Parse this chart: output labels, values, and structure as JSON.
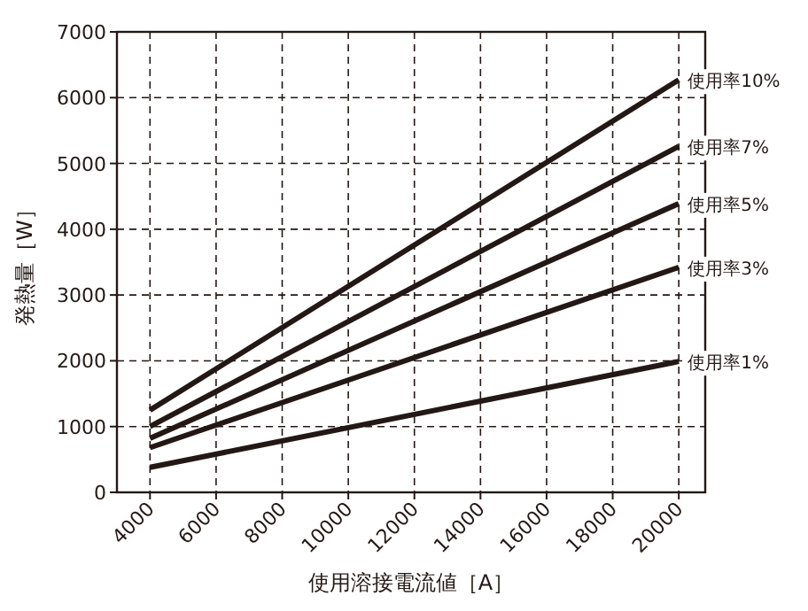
{
  "chart_data": {
    "type": "line",
    "xlabel": "使用溶接電流値［A］",
    "ylabel": "発熱量［W］",
    "x": [
      4000,
      20000
    ],
    "series": [
      {
        "name": "使用率10%",
        "color": "#231815",
        "values": [
          1250,
          6270
        ]
      },
      {
        "name": "使用率7%",
        "color": "#231815",
        "values": [
          1000,
          5260
        ]
      },
      {
        "name": "使用率5%",
        "color": "#231815",
        "values": [
          820,
          4390
        ]
      },
      {
        "name": "使用率3%",
        "color": "#231815",
        "values": [
          680,
          3420
        ]
      },
      {
        "name": "使用率1%",
        "color": "#231815",
        "values": [
          380,
          1990
        ]
      }
    ],
    "xlim": [
      3000,
      20800
    ],
    "ylim": [
      0,
      7000
    ],
    "xticks": [
      4000,
      6000,
      8000,
      10000,
      12000,
      14000,
      16000,
      18000,
      20000
    ],
    "yticks": [
      0,
      1000,
      2000,
      3000,
      4000,
      5000,
      6000,
      7000
    ],
    "grid": true,
    "legend": false,
    "marker": "none",
    "line_style": "solid"
  }
}
